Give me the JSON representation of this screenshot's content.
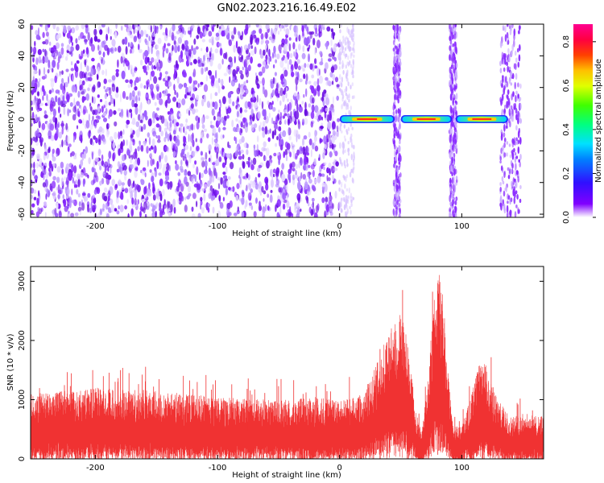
{
  "title": "GN02.2023.216.16.49.E02",
  "chart_data": [
    {
      "type": "heatmap",
      "name": "spectrogram",
      "xlabel": "Height of straight line (km)",
      "ylabel": "Frequency (Hz)",
      "xlim": [
        -253,
        167
      ],
      "ylim": [
        -62,
        60
      ],
      "x_ticks": [
        -200,
        -100,
        0,
        100
      ],
      "y_ticks": [
        -60,
        -40,
        -20,
        0,
        20,
        40,
        60
      ],
      "colorbar": {
        "label": "Normalized spectral amplitude",
        "range": [
          0,
          0.88
        ],
        "ticks": [
          0.0,
          0.2,
          0.4,
          0.6,
          0.8
        ]
      },
      "noise_region_x": [
        -253,
        0
      ],
      "vertical_noise_bands_x": [
        47,
        93,
        140
      ],
      "signal_segments": [
        {
          "x": [
            0,
            45
          ],
          "frequency": 0,
          "peak_amplitude": 0.85
        },
        {
          "x": [
            50,
            92
          ],
          "frequency": 0,
          "peak_amplitude": 0.65
        },
        {
          "x": [
            95,
            138
          ],
          "frequency": 0,
          "peak_amplitude": 0.8
        }
      ]
    },
    {
      "type": "area",
      "name": "snr",
      "xlabel": "Height of straight line (km)",
      "ylabel": "SNR (10 * v/v)",
      "xlim": [
        -253,
        167
      ],
      "ylim": [
        0,
        3250
      ],
      "x_ticks": [
        -200,
        -100,
        0,
        100
      ],
      "y_ticks": [
        0,
        1000,
        2000,
        3000
      ],
      "color": "#f03232",
      "envelope": {
        "x": [
          -253,
          -220,
          -200,
          -150,
          -100,
          -50,
          -20,
          0,
          15,
          25,
          35,
          45,
          50,
          55,
          62,
          67,
          72,
          78,
          82,
          85,
          88,
          93,
          100,
          108,
          113,
          118,
          122,
          130,
          140,
          150,
          167
        ],
        "y": [
          1000,
          1050,
          1100,
          1050,
          950,
          900,
          950,
          900,
          950,
          1200,
          1700,
          2150,
          2250,
          1900,
          800,
          400,
          1200,
          2600,
          2850,
          2500,
          1500,
          500,
          500,
          1000,
          1400,
          1550,
          1300,
          900,
          650,
          700,
          650
        ]
      }
    }
  ]
}
